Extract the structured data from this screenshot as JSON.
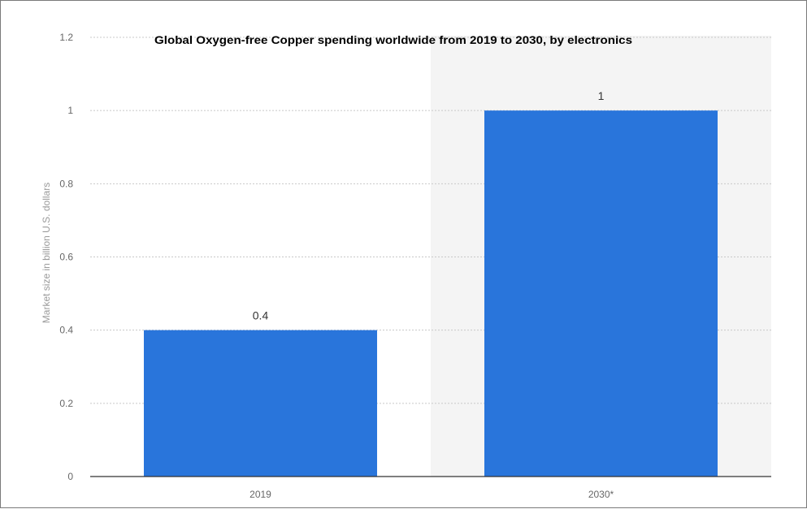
{
  "chart_data": {
    "type": "bar",
    "title": "Global Oxygen-free Copper spending worldwide from 2019 to 2030, by electronics",
    "xlabel": "",
    "ylabel": "Market size in billion U.S. dollars",
    "categories": [
      "2019",
      "2030*"
    ],
    "values": [
      0.4,
      1
    ],
    "data_labels": [
      "0.4",
      "1"
    ],
    "ylim": [
      0,
      1.2
    ],
    "yticks": [
      0,
      0.2,
      0.4,
      0.6,
      0.8,
      1,
      1.2
    ],
    "ytick_labels": [
      "0",
      "0.2",
      "0.4",
      "0.6",
      "0.8",
      "1",
      "1.2"
    ],
    "grid": true,
    "bar_color": "#2975db",
    "highlight_band_color": "#f4f4f4"
  }
}
